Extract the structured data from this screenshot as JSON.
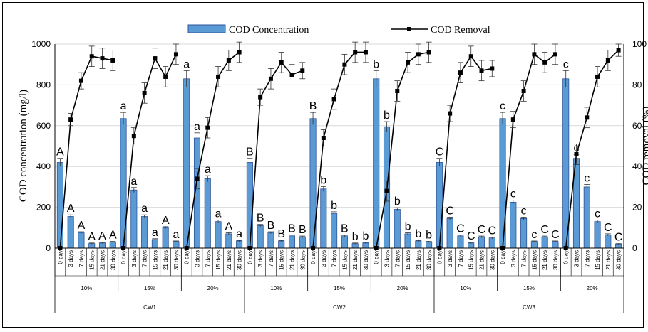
{
  "chart_data": {
    "type": "bar",
    "title": "",
    "ylabel": "COD concentration (mg/l)",
    "y2label": "COD removal (%)",
    "ylim": [
      0,
      1000
    ],
    "y2lim": [
      0,
      100
    ],
    "yticks": [
      "0",
      "200",
      "400",
      "600",
      "800",
      "1000"
    ],
    "y2ticks": [
      "0",
      "20",
      "40",
      "60",
      "80",
      "100"
    ],
    "grid": true,
    "legend_position": "top-center",
    "days": [
      "0 day",
      "3 days",
      "7 days",
      "15 days",
      "21 days",
      "30 days"
    ],
    "groups": [
      {
        "system": "CW1",
        "dose": "10%",
        "conc": [
          420,
          155,
          75,
          22,
          25,
          30
        ],
        "conc_err": [
          20,
          8,
          5,
          3,
          3,
          3
        ],
        "removal": [
          0,
          63,
          82,
          94,
          93,
          92
        ],
        "removal_err": [
          0,
          3,
          4,
          5,
          5,
          5
        ],
        "labels": [
          "A",
          "A",
          "A",
          "A",
          "A",
          "A"
        ]
      },
      {
        "system": "CW1",
        "dose": "15%",
        "conc": [
          635,
          285,
          155,
          42,
          100,
          32
        ],
        "conc_err": [
          30,
          12,
          8,
          4,
          5,
          3
        ],
        "removal": [
          0,
          55,
          76,
          93,
          84,
          95
        ],
        "removal_err": [
          0,
          4,
          5,
          5,
          5,
          5
        ],
        "labels": [
          "a",
          "a",
          "a",
          "a",
          "A",
          "a"
        ]
      },
      {
        "system": "CW1",
        "dose": "20%",
        "conc": [
          830,
          540,
          340,
          130,
          70,
          35
        ],
        "conc_err": [
          40,
          25,
          15,
          8,
          5,
          3
        ],
        "removal": [
          0,
          34,
          59,
          84,
          92,
          96
        ],
        "removal_err": [
          0,
          5,
          5,
          5,
          5,
          5
        ],
        "labels": [
          "a",
          "a",
          "a",
          "a",
          "A",
          "a"
        ]
      },
      {
        "system": "CW2",
        "dose": "10%",
        "conc": [
          420,
          110,
          75,
          35,
          60,
          55
        ],
        "conc_err": [
          20,
          6,
          5,
          3,
          4,
          4
        ],
        "removal": [
          0,
          74,
          83,
          91,
          85,
          87
        ],
        "removal_err": [
          0,
          4,
          5,
          5,
          5,
          4
        ],
        "labels": [
          "B",
          "B",
          "B",
          "B",
          "B",
          "B"
        ]
      },
      {
        "system": "CW2",
        "dose": "15%",
        "conc": [
          635,
          290,
          170,
          60,
          22,
          25
        ],
        "conc_err": [
          30,
          12,
          8,
          4,
          3,
          3
        ],
        "removal": [
          0,
          54,
          73,
          90,
          96,
          96
        ],
        "removal_err": [
          0,
          4,
          5,
          5,
          5,
          5
        ],
        "labels": [
          "B",
          "b",
          "b",
          "B",
          "b",
          "b"
        ]
      },
      {
        "system": "CW2",
        "dose": "20%",
        "conc": [
          830,
          595,
          190,
          70,
          35,
          30
        ],
        "conc_err": [
          40,
          25,
          8,
          5,
          3,
          3
        ],
        "removal": [
          0,
          28,
          77,
          91,
          95,
          96
        ],
        "removal_err": [
          0,
          5,
          5,
          5,
          5,
          5
        ],
        "labels": [
          "b",
          "b",
          "b",
          "b",
          "b",
          "b"
        ]
      },
      {
        "system": "CW3",
        "dose": "10%",
        "conc": [
          420,
          145,
          60,
          25,
          55,
          50
        ],
        "conc_err": [
          20,
          7,
          4,
          3,
          4,
          4
        ],
        "removal": [
          0,
          66,
          86,
          94,
          87,
          88
        ],
        "removal_err": [
          0,
          4,
          5,
          5,
          5,
          4
        ],
        "labels": [
          "C",
          "C",
          "C",
          "C",
          "C",
          "C"
        ]
      },
      {
        "system": "CW3",
        "dose": "15%",
        "conc": [
          635,
          225,
          145,
          32,
          55,
          32
        ],
        "conc_err": [
          30,
          10,
          7,
          3,
          4,
          3
        ],
        "removal": [
          0,
          63,
          77,
          95,
          91,
          95
        ],
        "removal_err": [
          0,
          4,
          5,
          5,
          5,
          5
        ],
        "labels": [
          "c",
          "c",
          "c",
          "c",
          "C",
          "C"
        ]
      },
      {
        "system": "CW3",
        "dose": "20%",
        "conc": [
          830,
          440,
          300,
          130,
          65,
          20
        ],
        "conc_err": [
          40,
          20,
          12,
          7,
          5,
          2
        ],
        "removal": [
          0,
          46,
          64,
          84,
          92,
          97
        ],
        "removal_err": [
          0,
          5,
          5,
          5,
          5,
          3
        ],
        "labels": [
          "c",
          "c",
          "c",
          "c",
          "C",
          "C"
        ]
      }
    ],
    "series": [
      {
        "name": "COD Concentration",
        "type": "bar",
        "axis": "left"
      },
      {
        "name": "COD Removal",
        "type": "line",
        "axis": "right"
      }
    ],
    "colors": {
      "bar": "#5b9bd5",
      "bar_stroke": "#2f5597",
      "line": "#000000",
      "grid": "#d9d9d9"
    }
  }
}
